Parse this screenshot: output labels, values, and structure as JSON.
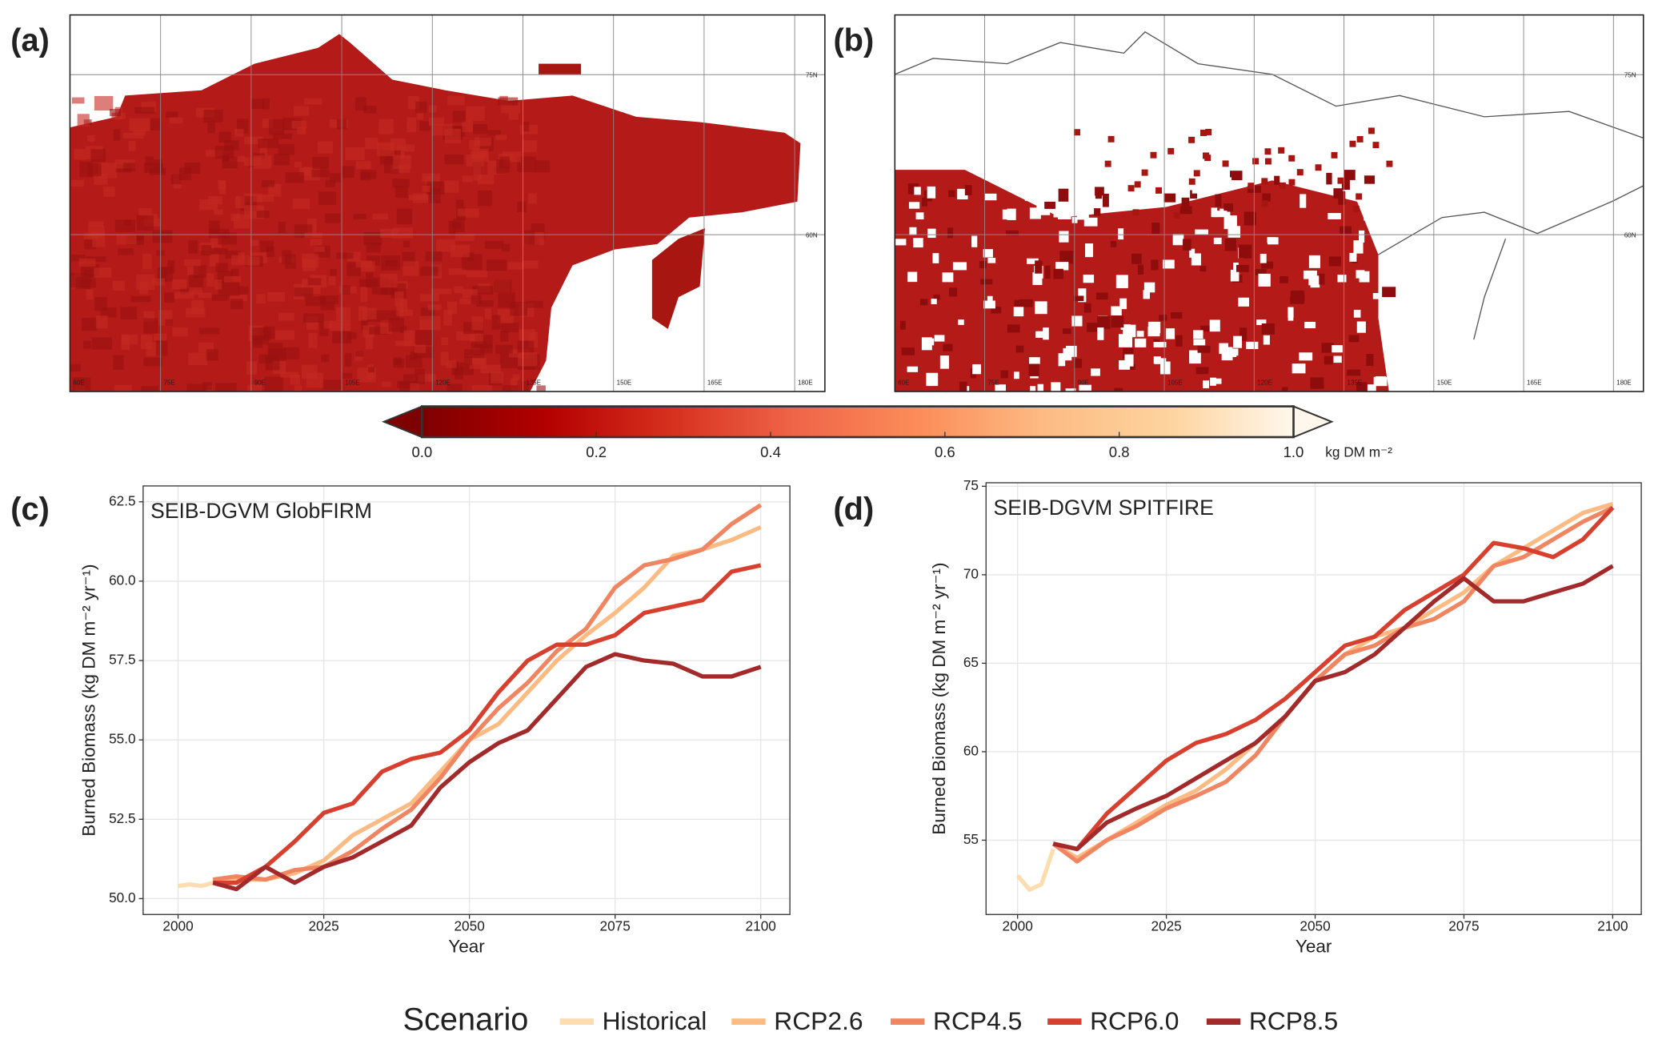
{
  "chart_data": [
    {
      "type": "map",
      "panel_label": "(a)",
      "xlim": [
        60,
        185
      ],
      "ylim": [
        45.3,
        80.6
      ],
      "xticks": [
        {
          "value": 60,
          "label": "60E"
        },
        {
          "value": 75,
          "label": "75E"
        },
        {
          "value": 90,
          "label": "90E"
        },
        {
          "value": 105,
          "label": "105E"
        },
        {
          "value": 120,
          "label": "120E"
        },
        {
          "value": 135,
          "label": "135E"
        },
        {
          "value": 150,
          "label": "150E"
        },
        {
          "value": 165,
          "label": "165E"
        },
        {
          "value": 180,
          "label": "180E"
        }
      ],
      "yticks": [
        {
          "value": 60,
          "label": "60N"
        },
        {
          "value": 75,
          "label": "75N"
        }
      ]
    },
    {
      "type": "map",
      "panel_label": "(b)",
      "xlim": [
        60,
        185
      ],
      "ylim": [
        45.3,
        80.6
      ],
      "xticks": [
        {
          "value": 60,
          "label": "60E"
        },
        {
          "value": 75,
          "label": "75E"
        },
        {
          "value": 90,
          "label": "90E"
        },
        {
          "value": 105,
          "label": "105E"
        },
        {
          "value": 120,
          "label": "120E"
        },
        {
          "value": 135,
          "label": "135E"
        },
        {
          "value": 150,
          "label": "150E"
        },
        {
          "value": 165,
          "label": "165E"
        },
        {
          "value": 180,
          "label": "180E"
        }
      ],
      "yticks": [
        {
          "value": 60,
          "label": "60N"
        },
        {
          "value": 75,
          "label": "75N"
        }
      ]
    },
    {
      "type": "colorbar",
      "label": "kg DM m⁻²",
      "xlim": [
        0,
        1
      ],
      "xticks": [
        {
          "value": 0,
          "label": "0.0"
        },
        0.2,
        0.4,
        0.6,
        0.8,
        {
          "value": 1,
          "label": "1.0"
        }
      ],
      "colors": [
        "#7f0000",
        "#b30000",
        "#d7301f",
        "#ef6548",
        "#fc8d59",
        "#fdbb84",
        "#fdd49e",
        "#fff7ec"
      ]
    },
    {
      "type": "line",
      "panel_label": "(c)",
      "title": "SEIB-DGVM GlobFIRM",
      "xlabel": "Year",
      "ylabel": "Burned Biomass (kg DM m⁻² yr⁻¹)",
      "legend_title": "Scenario",
      "grid": true,
      "xlim": [
        1994,
        2105
      ],
      "ylim": [
        49.5,
        63.0
      ],
      "xticks": [
        2000,
        2025,
        2050,
        2075,
        2100
      ],
      "yticks": [
        {
          "value": 50,
          "label": "50.0"
        },
        52.5,
        {
          "value": 55,
          "label": "55.0"
        },
        57.5,
        {
          "value": 60,
          "label": "60.0"
        },
        62.5
      ],
      "series": [
        {
          "name": "Historical",
          "color": "#fddcb0",
          "x": [
            2000,
            2002,
            2004,
            2006
          ],
          "values": [
            50.4,
            50.45,
            50.4,
            50.5
          ]
        },
        {
          "name": "RCP2.6",
          "color": "#fdbb84",
          "x": [
            2006,
            2010,
            2015,
            2020,
            2025,
            2030,
            2035,
            2040,
            2045,
            2050,
            2055,
            2060,
            2065,
            2070,
            2075,
            2080,
            2085,
            2090,
            2095,
            2100
          ],
          "values": [
            50.6,
            50.6,
            50.6,
            50.8,
            51.2,
            52.0,
            52.5,
            53.0,
            54.0,
            55.0,
            55.5,
            56.5,
            57.5,
            58.3,
            59.0,
            59.8,
            60.8,
            61.0,
            61.3,
            61.7
          ]
        },
        {
          "name": "RCP4.5",
          "color": "#f08562",
          "x": [
            2006,
            2010,
            2015,
            2020,
            2025,
            2030,
            2035,
            2040,
            2045,
            2050,
            2055,
            2060,
            2065,
            2070,
            2075,
            2080,
            2085,
            2090,
            2095,
            2100
          ],
          "values": [
            50.6,
            50.7,
            50.6,
            50.9,
            51.0,
            51.5,
            52.2,
            52.8,
            53.8,
            55.0,
            56.0,
            56.8,
            57.8,
            58.5,
            59.8,
            60.5,
            60.7,
            61.0,
            61.8,
            62.4
          ]
        },
        {
          "name": "RCP6.0",
          "color": "#d7402f",
          "x": [
            2006,
            2010,
            2015,
            2020,
            2025,
            2030,
            2035,
            2040,
            2045,
            2050,
            2055,
            2060,
            2065,
            2070,
            2075,
            2080,
            2085,
            2090,
            2095,
            2100
          ],
          "values": [
            50.5,
            50.5,
            51.0,
            51.8,
            52.7,
            53.0,
            54.0,
            54.4,
            54.6,
            55.3,
            56.5,
            57.5,
            58.0,
            58.0,
            58.3,
            59.0,
            59.2,
            59.4,
            60.3,
            60.5
          ]
        },
        {
          "name": "RCP8.5",
          "color": "#a32a2a",
          "x": [
            2006,
            2010,
            2015,
            2020,
            2025,
            2030,
            2035,
            2040,
            2045,
            2050,
            2055,
            2060,
            2065,
            2070,
            2075,
            2080,
            2085,
            2090,
            2095,
            2100
          ],
          "values": [
            50.5,
            50.3,
            51.0,
            50.5,
            51.0,
            51.3,
            51.8,
            52.3,
            53.5,
            54.3,
            54.9,
            55.3,
            56.3,
            57.3,
            57.7,
            57.5,
            57.4,
            57.0,
            57.0,
            57.3
          ]
        }
      ]
    },
    {
      "type": "line",
      "panel_label": "(d)",
      "title": "SEIB-DGVM SPITFIRE",
      "xlabel": "Year",
      "ylabel": "Burned Biomass (kg DM m⁻² yr⁻¹)",
      "grid": true,
      "xlim": [
        1994.7,
        2104.8
      ],
      "ylim": [
        50.8,
        75.2
      ],
      "xticks": [
        2000,
        2025,
        2050,
        2075,
        2100
      ],
      "yticks": [
        55,
        60,
        65,
        70,
        75
      ],
      "series": [
        {
          "name": "Historical",
          "color": "#fddcb0",
          "x": [
            2000,
            2002,
            2004,
            2006
          ],
          "values": [
            53.0,
            52.2,
            52.5,
            54.5
          ]
        },
        {
          "name": "RCP2.6",
          "color": "#fdbb84",
          "x": [
            2006,
            2010,
            2015,
            2020,
            2025,
            2030,
            2035,
            2040,
            2045,
            2050,
            2055,
            2060,
            2065,
            2070,
            2075,
            2080,
            2085,
            2090,
            2095,
            2100
          ],
          "values": [
            54.8,
            54.0,
            55.0,
            56.0,
            57.0,
            57.8,
            59.0,
            60.5,
            62.0,
            64.0,
            65.5,
            66.5,
            67.0,
            68.0,
            69.0,
            70.5,
            71.5,
            72.5,
            73.5,
            74.0
          ]
        },
        {
          "name": "RCP4.5",
          "color": "#f08562",
          "x": [
            2006,
            2010,
            2015,
            2020,
            2025,
            2030,
            2035,
            2040,
            2045,
            2050,
            2055,
            2060,
            2065,
            2070,
            2075,
            2080,
            2085,
            2090,
            2095,
            2100
          ],
          "values": [
            54.8,
            53.8,
            55.0,
            55.8,
            56.8,
            57.5,
            58.3,
            59.8,
            62.0,
            64.0,
            65.5,
            66.0,
            67.0,
            67.5,
            68.5,
            70.5,
            71.0,
            72.0,
            73.0,
            73.8
          ]
        },
        {
          "name": "RCP6.0",
          "color": "#d7402f",
          "x": [
            2006,
            2010,
            2015,
            2020,
            2025,
            2030,
            2035,
            2040,
            2045,
            2050,
            2055,
            2060,
            2065,
            2070,
            2075,
            2080,
            2085,
            2090,
            2095,
            2100
          ],
          "values": [
            54.8,
            54.5,
            56.5,
            58.0,
            59.5,
            60.5,
            61.0,
            61.8,
            63.0,
            64.5,
            66.0,
            66.5,
            68.0,
            69.0,
            70.0,
            71.8,
            71.5,
            71.0,
            72.0,
            73.8
          ]
        },
        {
          "name": "RCP8.5",
          "color": "#a32a2a",
          "x": [
            2006,
            2010,
            2015,
            2020,
            2025,
            2030,
            2035,
            2040,
            2045,
            2050,
            2055,
            2060,
            2065,
            2070,
            2075,
            2080,
            2085,
            2090,
            2095,
            2100
          ],
          "values": [
            54.8,
            54.5,
            56.0,
            56.8,
            57.5,
            58.5,
            59.5,
            60.5,
            62.0,
            64.0,
            64.5,
            65.5,
            67.0,
            68.5,
            69.8,
            68.5,
            68.5,
            69.0,
            69.5,
            70.5
          ]
        }
      ]
    }
  ]
}
